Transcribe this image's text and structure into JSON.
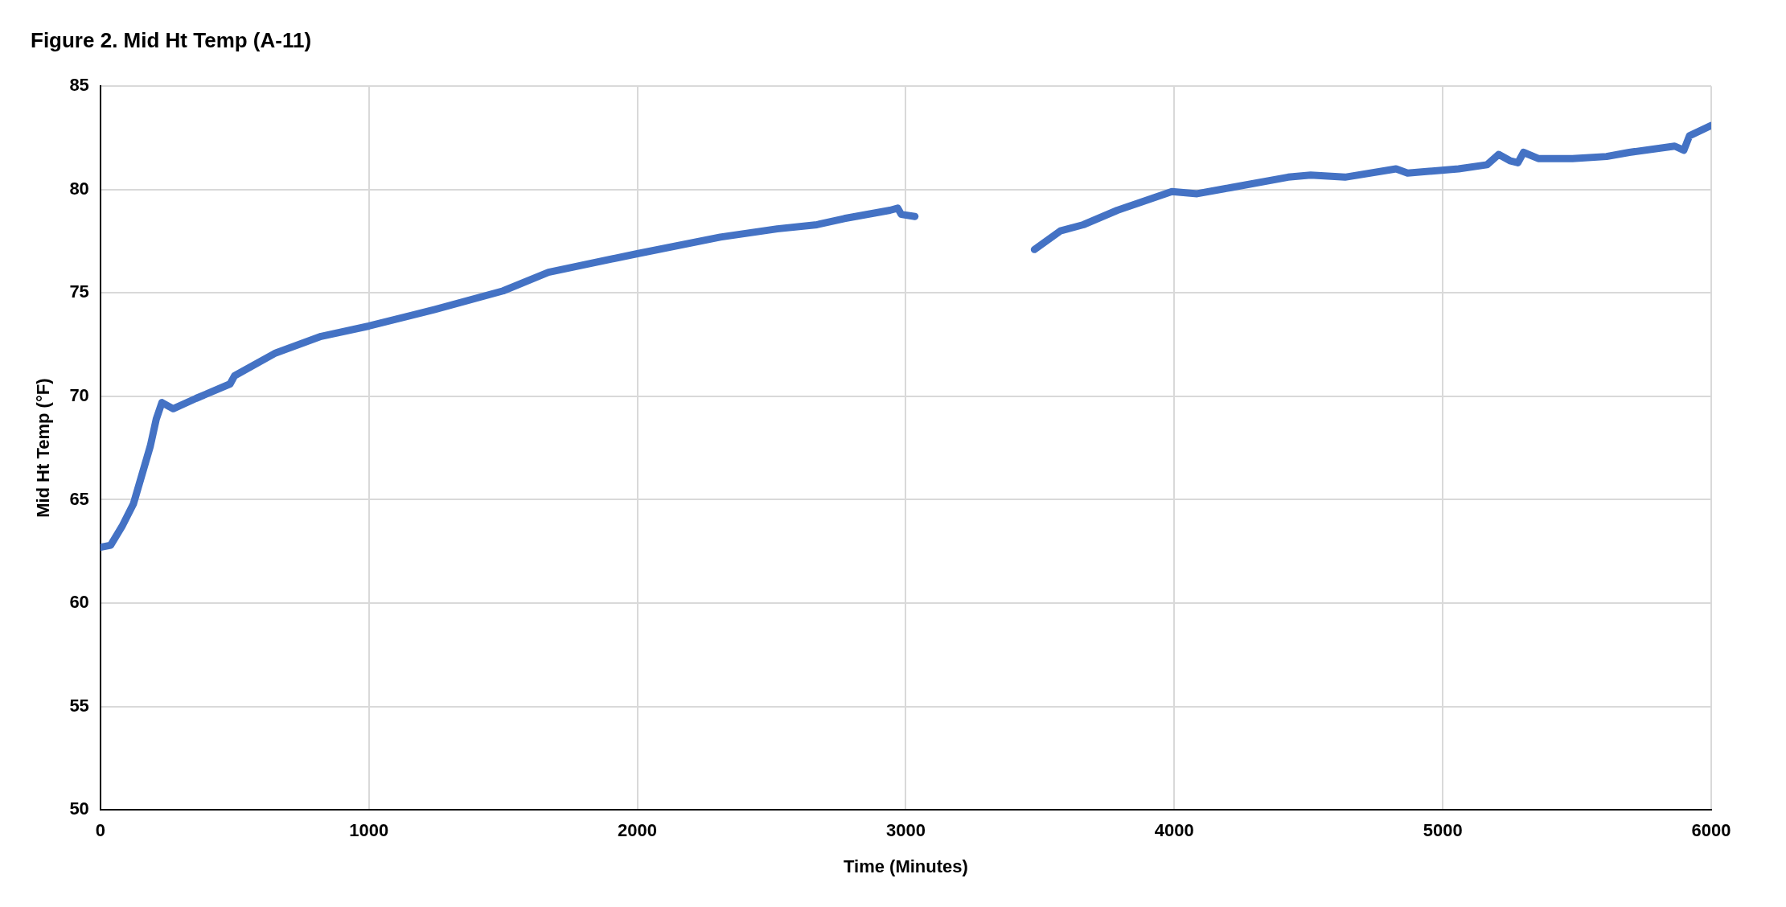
{
  "chart_data": {
    "type": "line",
    "title": "Figure 2. Mid Ht Temp (A-11)",
    "xlabel": "Time (Minutes)",
    "ylabel": "Mid Ht Temp (°F)",
    "xlim": [
      0,
      6000
    ],
    "xticks": [
      0,
      1000,
      2000,
      3000,
      4000,
      5000,
      6000
    ],
    "ylim": [
      50,
      85
    ],
    "yticks": [
      50,
      55,
      60,
      65,
      70,
      75,
      80,
      85
    ],
    "grid": true,
    "legend": false,
    "marker": "none",
    "line_style": "solid",
    "series": [
      {
        "color": "#4472c4",
        "x": [
          0,
          38,
          80,
          123,
          186,
          208,
          229,
          271,
          356,
          483,
          500,
          653,
          822,
          1000,
          1246,
          1500,
          1669,
          2000,
          2309,
          2521,
          2669,
          2771,
          2941,
          2970,
          2983,
          3034,
          3250,
          3479,
          3576,
          3661,
          3788,
          3991,
          4085,
          4212,
          4424,
          4508,
          4636,
          4826,
          4869,
          5059,
          5165,
          5208,
          5250,
          5280,
          5301,
          5356,
          5483,
          5610,
          5695,
          5864,
          5898,
          5919,
          6000
        ],
        "values": [
          62.7,
          62.8,
          63.7,
          64.8,
          67.6,
          68.9,
          69.7,
          69.4,
          69.9,
          70.6,
          71.0,
          72.1,
          72.9,
          73.4,
          74.2,
          75.1,
          76.0,
          76.9,
          77.7,
          78.1,
          78.3,
          78.6,
          79.0,
          79.1,
          78.8,
          78.7,
          null,
          77.1,
          78.0,
          78.3,
          79.0,
          79.9,
          79.8,
          80.1,
          80.6,
          80.7,
          80.6,
          81.0,
          80.8,
          81.0,
          81.2,
          81.7,
          81.4,
          81.3,
          81.8,
          81.5,
          81.5,
          81.6,
          81.8,
          82.1,
          81.9,
          82.6,
          83.1
        ]
      }
    ]
  }
}
